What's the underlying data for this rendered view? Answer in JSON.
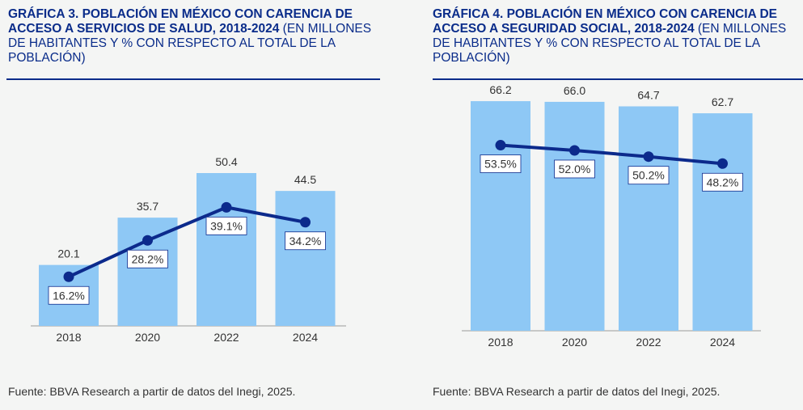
{
  "colors": {
    "title": "#0a2c8a",
    "bar": "#8ec8f5",
    "line": "#0c2a8c",
    "axis": "#9a9a9a",
    "text": "#333333",
    "background": "#f4f5f4"
  },
  "left": {
    "title_bold": "GRÁFICA 3. POBLACIÓN EN MÉXICO CON CARENCIA DE ACCESO A SERVICIOS DE SALUD, 2018-2024",
    "title_rest": " (EN MILLONES DE HABITANTES Y % CON RESPECTO AL TOTAL DE LA POBLACIÓN)",
    "source": "Fuente: BBVA Research a partir de datos del Inegi, 2025."
  },
  "right": {
    "title_bold": "GRÁFICA 4. POBLACIÓN EN MÉXICO CON CARENCIA DE ACCESO A SEGURIDAD SOCIAL, 2018-2024",
    "title_rest": " (EN MILLONES DE HABITANTES Y % CON RESPECTO AL TOTAL DE LA POBLACIÓN)",
    "source": "Fuente: BBVA Research a partir de datos del Inegi, 2025."
  },
  "chart_data": [
    {
      "type": "bar",
      "title": "GRÁFICA 3. POBLACIÓN EN MÉXICO CON CARENCIA DE ACCESO A SERVICIOS DE SALUD, 2018-2024 (EN MILLONES DE HABITANTES Y % CON RESPECTO AL TOTAL DE LA POBLACIÓN)",
      "categories": [
        "2018",
        "2020",
        "2022",
        "2024"
      ],
      "series": [
        {
          "name": "Millones de habitantes",
          "kind": "bar",
          "values": [
            20.1,
            35.7,
            50.4,
            44.5
          ],
          "labels": [
            "20.1",
            "35.7",
            "50.4",
            "44.5"
          ]
        },
        {
          "name": "% de la población",
          "kind": "line",
          "values": [
            16.2,
            28.2,
            39.1,
            34.2
          ],
          "labels": [
            "16.2%",
            "28.2%",
            "39.1%",
            "34.2%"
          ]
        }
      ],
      "ylim": [
        0,
        80
      ],
      "ylim_pct": [
        0,
        80
      ],
      "grid": false
    },
    {
      "type": "bar",
      "title": "GRÁFICA 4. POBLACIÓN EN MÉXICO CON CARENCIA DE ACCESO A SEGURIDAD SOCIAL, 2018-2024 (EN MILLONES DE HABITANTES Y % CON RESPECTO AL TOTAL DE LA POBLACIÓN)",
      "categories": [
        "2018",
        "2020",
        "2022",
        "2024"
      ],
      "series": [
        {
          "name": "Millones de habitantes",
          "kind": "bar",
          "values": [
            66.2,
            66.0,
            64.7,
            62.7
          ],
          "labels": [
            "66.2",
            "66.0",
            "64.7",
            "62.7"
          ]
        },
        {
          "name": "% de la población",
          "kind": "line",
          "values": [
            53.5,
            52.0,
            50.2,
            48.2
          ],
          "labels": [
            "53.5%",
            "52.0%",
            "50.2%",
            "48.2%"
          ]
        }
      ],
      "ylim": [
        0,
        90
      ],
      "ylim_pct": [
        0,
        90
      ],
      "grid": false
    }
  ]
}
